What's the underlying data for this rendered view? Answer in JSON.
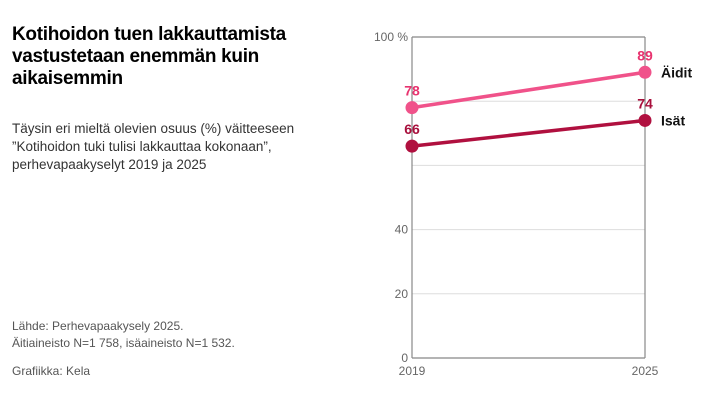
{
  "title": "Kotihoidon tuen lakkauttamista vastustetaan enemmän kuin aikaisemmin",
  "subtitle": "Täysin eri mieltä olevien osuus (%) väitteeseen ”Kotihoidon tuki tulisi lakkauttaa kokonaan”, perhevapaakyselyt 2019 ja 2025",
  "source_line1": "Lähde: Perhevapaakysely 2025.",
  "source_line2": "Äitiaineisto N=1 758,  isäaineisto N=1 532.",
  "credit": "Grafiikka: Kela",
  "chart_data": {
    "type": "line",
    "x": [
      "2019",
      "2025"
    ],
    "ylim": [
      0,
      100
    ],
    "yticks": [
      0,
      20,
      40,
      60,
      80,
      100
    ],
    "ytick_labels": [
      "0",
      "20",
      "40",
      "",
      "",
      "100 %"
    ],
    "grid": true,
    "series": [
      {
        "name": "Äidit",
        "values": [
          78,
          89
        ],
        "color": "#f0528a",
        "label_color": "#e8336f"
      },
      {
        "name": "Isät",
        "values": [
          66,
          74
        ],
        "color": "#b0103f",
        "label_color": "#a80f3c"
      }
    ]
  }
}
